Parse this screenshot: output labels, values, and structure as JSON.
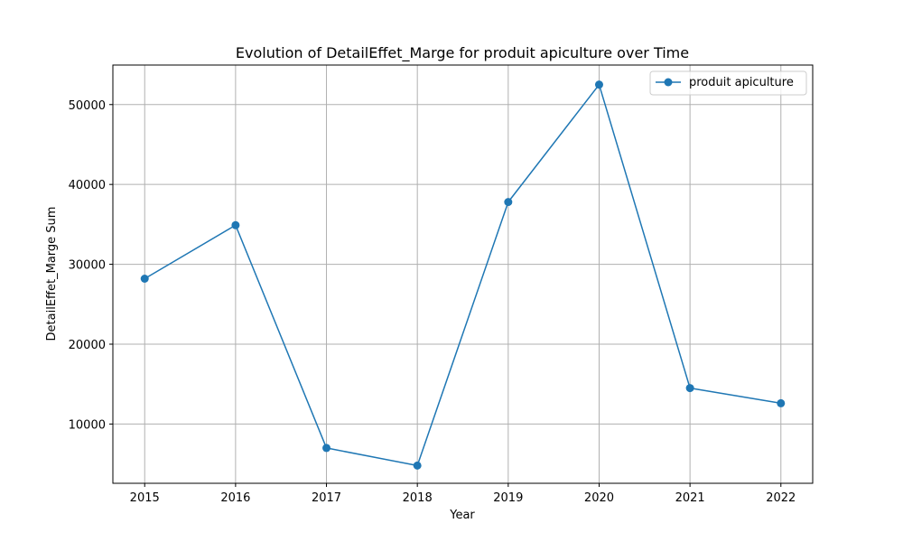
{
  "chart_data": {
    "type": "line",
    "title": "Evolution of DetailEffet_Marge for produit apiculture over Time",
    "xlabel": "Year",
    "ylabel": "DetailEffet_Marge Sum",
    "x": [
      2015,
      2016,
      2017,
      2018,
      2019,
      2020,
      2021,
      2022
    ],
    "x_tick_labels": [
      "2015",
      "2016",
      "2017",
      "2018",
      "2019",
      "2020",
      "2021",
      "2022"
    ],
    "xlim": [
      2014.65,
      2022.35
    ],
    "ylim": [
      2580,
      54950
    ],
    "y_ticks": [
      10000,
      20000,
      30000,
      40000,
      50000
    ],
    "y_tick_labels": [
      "10000",
      "20000",
      "30000",
      "40000",
      "50000"
    ],
    "grid": true,
    "legend_position": "top-right",
    "series": [
      {
        "name": "produit apiculture",
        "color": "#1f77b4",
        "marker": "circle",
        "values": [
          28200,
          34900,
          7000,
          4800,
          37800,
          52500,
          14500,
          12600
        ]
      }
    ]
  }
}
